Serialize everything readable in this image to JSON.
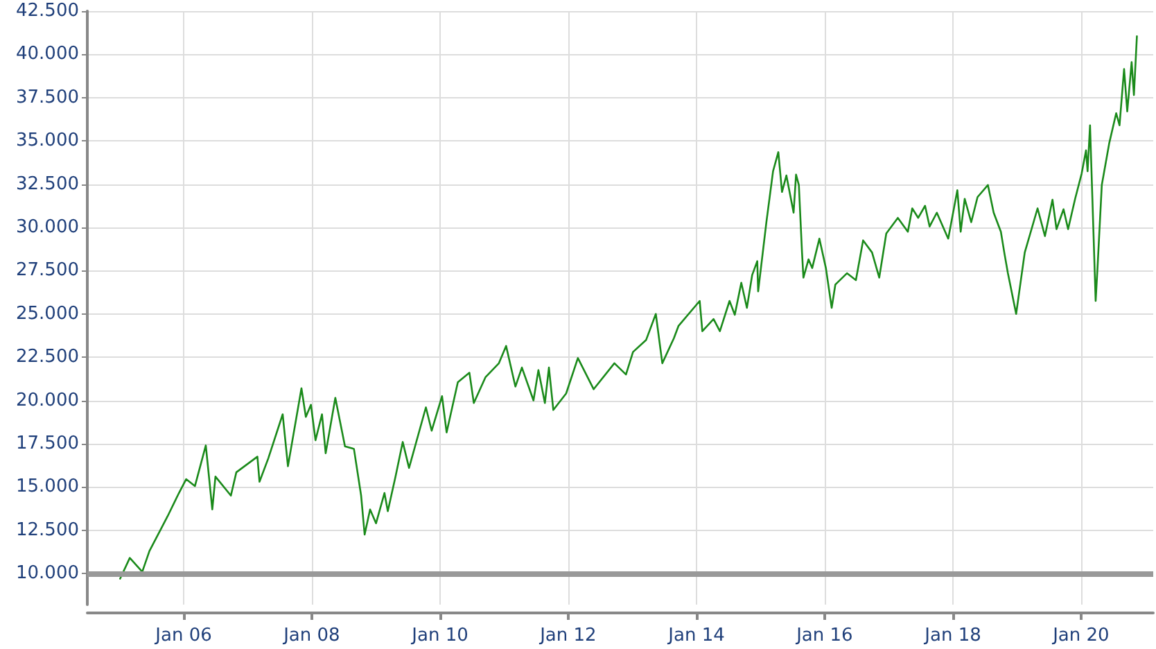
{
  "chart_data": {
    "type": "line",
    "x": [
      "2005-01-04",
      "2005-02-28",
      "2005-05-10",
      "2005-06-20",
      "2005-10-01",
      "2005-12-05",
      "2006-01-15",
      "2006-03-06",
      "2006-05-07",
      "2006-06-13",
      "2006-07-01",
      "2006-09-27",
      "2006-10-28",
      "2007-02-25",
      "2007-03-09",
      "2007-04-28",
      "2007-07-19",
      "2007-08-18",
      "2007-11-03",
      "2007-11-28",
      "2007-12-27",
      "2008-01-22",
      "2008-02-28",
      "2008-03-20",
      "2008-05-14",
      "2008-07-08",
      "2008-08-28",
      "2008-10-08",
      "2008-10-28",
      "2008-11-28",
      "2009-01-01",
      "2009-02-18",
      "2009-03-09",
      "2009-04-22",
      "2009-06-02",
      "2009-07-08",
      "2009-10-12",
      "2009-11-14",
      "2010-01-12",
      "2010-02-07",
      "2010-04-12",
      "2010-06-17",
      "2010-07-12",
      "2010-09-17",
      "2010-12-02",
      "2011-01-12",
      "2011-03-06",
      "2011-04-12",
      "2011-06-17",
      "2011-07-15",
      "2011-08-21",
      "2011-09-13",
      "2011-10-08",
      "2011-12-20",
      "2012-02-25",
      "2012-05-25",
      "2012-09-20",
      "2012-11-25",
      "2013-01-04",
      "2013-03-20",
      "2013-05-14",
      "2013-06-20",
      "2013-08-25",
      "2013-09-20",
      "2014-01-19",
      "2014-02-03",
      "2014-04-08",
      "2014-05-14",
      "2014-07-08",
      "2014-08-07",
      "2014-09-13",
      "2014-10-15",
      "2014-11-14",
      "2014-12-13",
      "2014-12-18",
      "2015-02-03",
      "2015-03-13",
      "2015-04-12",
      "2015-05-03",
      "2015-05-28",
      "2015-07-08",
      "2015-07-22",
      "2015-08-07",
      "2015-08-25",
      "2015-09-02",
      "2015-10-01",
      "2015-10-22",
      "2015-12-02",
      "2016-01-08",
      "2016-02-10",
      "2016-03-02",
      "2016-05-07",
      "2016-06-27",
      "2016-08-07",
      "2016-09-27",
      "2016-11-07",
      "2016-12-17",
      "2017-02-21",
      "2017-04-19",
      "2017-05-14",
      "2017-06-17",
      "2017-07-26",
      "2017-08-21",
      "2017-10-01",
      "2017-12-05",
      "2018-01-26",
      "2018-02-14",
      "2018-03-09",
      "2018-04-15",
      "2018-05-21",
      "2018-07-19",
      "2018-08-21",
      "2018-10-01",
      "2018-10-22",
      "2018-11-10",
      "2018-12-27",
      "2019-02-14",
      "2019-04-28",
      "2019-06-09",
      "2019-07-22",
      "2019-08-14",
      "2019-09-23",
      "2019-10-19",
      "2019-11-28",
      "2020-01-04",
      "2020-01-29",
      "2020-02-07",
      "2020-02-21",
      "2020-03-24",
      "2020-04-04",
      "2020-04-28",
      "2020-06-09",
      "2020-07-19",
      "2020-08-07",
      "2020-09-02",
      "2020-09-20",
      "2020-10-15",
      "2020-10-28",
      "2020-11-14"
    ],
    "series": [
      {
        "color": "#1a8a1a",
        "values": [
          9700,
          10900,
          10100,
          11300,
          13300,
          14650,
          15450,
          15050,
          17400,
          13700,
          15600,
          14500,
          15850,
          16750,
          15300,
          16650,
          19200,
          16200,
          20700,
          19050,
          19750,
          17700,
          19200,
          16950,
          20150,
          17350,
          17200,
          14500,
          12250,
          13700,
          12900,
          14650,
          13600,
          15600,
          17600,
          16100,
          19600,
          18250,
          20250,
          18150,
          21050,
          21600,
          19850,
          21350,
          22150,
          23150,
          20800,
          21900,
          20000,
          21750,
          19850,
          21900,
          19450,
          20400,
          22450,
          20650,
          22150,
          21500,
          22800,
          23500,
          25000,
          22150,
          23600,
          24300,
          25750,
          24000,
          24700,
          24000,
          25750,
          24950,
          26800,
          25350,
          27250,
          28050,
          26300,
          30300,
          33250,
          34350,
          32050,
          33000,
          30850,
          33050,
          32450,
          28550,
          27100,
          28150,
          27650,
          29350,
          27650,
          25350,
          26700,
          27350,
          26950,
          29250,
          28550,
          27100,
          29650,
          30550,
          29750,
          31100,
          30550,
          31250,
          30050,
          30850,
          29350,
          32150,
          29750,
          31650,
          30300,
          31750,
          32450,
          30850,
          29750,
          28450,
          27350,
          25000,
          28550,
          31100,
          29500,
          31600,
          29900,
          31050,
          29900,
          31650,
          33100,
          34450,
          33250,
          35900,
          25750,
          27750,
          32450,
          34850,
          36600,
          35900,
          39150,
          36700,
          39550,
          37650,
          41050
        ]
      }
    ],
    "xlim": [
      "2004-07-01",
      "2021-02-15"
    ],
    "xticks": [
      {
        "value": "2006-01-01",
        "label": "Jan 06"
      },
      {
        "value": "2008-01-01",
        "label": "Jan 08"
      },
      {
        "value": "2010-01-01",
        "label": "Jan 10"
      },
      {
        "value": "2012-01-01",
        "label": "Jan 12"
      },
      {
        "value": "2014-01-01",
        "label": "Jan 14"
      },
      {
        "value": "2016-01-01",
        "label": "Jan 16"
      },
      {
        "value": "2018-01-01",
        "label": "Jan 18"
      },
      {
        "value": "2020-01-01",
        "label": "Jan 20"
      }
    ],
    "ylim": [
      8200,
      42500
    ],
    "yticks": [
      {
        "value": 10000,
        "label": "10.000"
      },
      {
        "value": 12500,
        "label": "12.500"
      },
      {
        "value": 15000,
        "label": "15.000"
      },
      {
        "value": 17500,
        "label": "17.500"
      },
      {
        "value": 20000,
        "label": "20.000"
      },
      {
        "value": 22500,
        "label": "22.500"
      },
      {
        "value": 25000,
        "label": "25.000"
      },
      {
        "value": 27500,
        "label": "27.500"
      },
      {
        "value": 30000,
        "label": "30.000"
      },
      {
        "value": 32500,
        "label": "32.500"
      },
      {
        "value": 35000,
        "label": "35.000"
      },
      {
        "value": 37500,
        "label": "37.500"
      },
      {
        "value": 40000,
        "label": "40.000"
      },
      {
        "value": 42500,
        "label": "42.500"
      }
    ],
    "ref_lines": [
      {
        "axis": "y",
        "value": 10000,
        "color": "#999999"
      }
    ],
    "grid": true,
    "marker": "none",
    "line_style": "solid"
  }
}
